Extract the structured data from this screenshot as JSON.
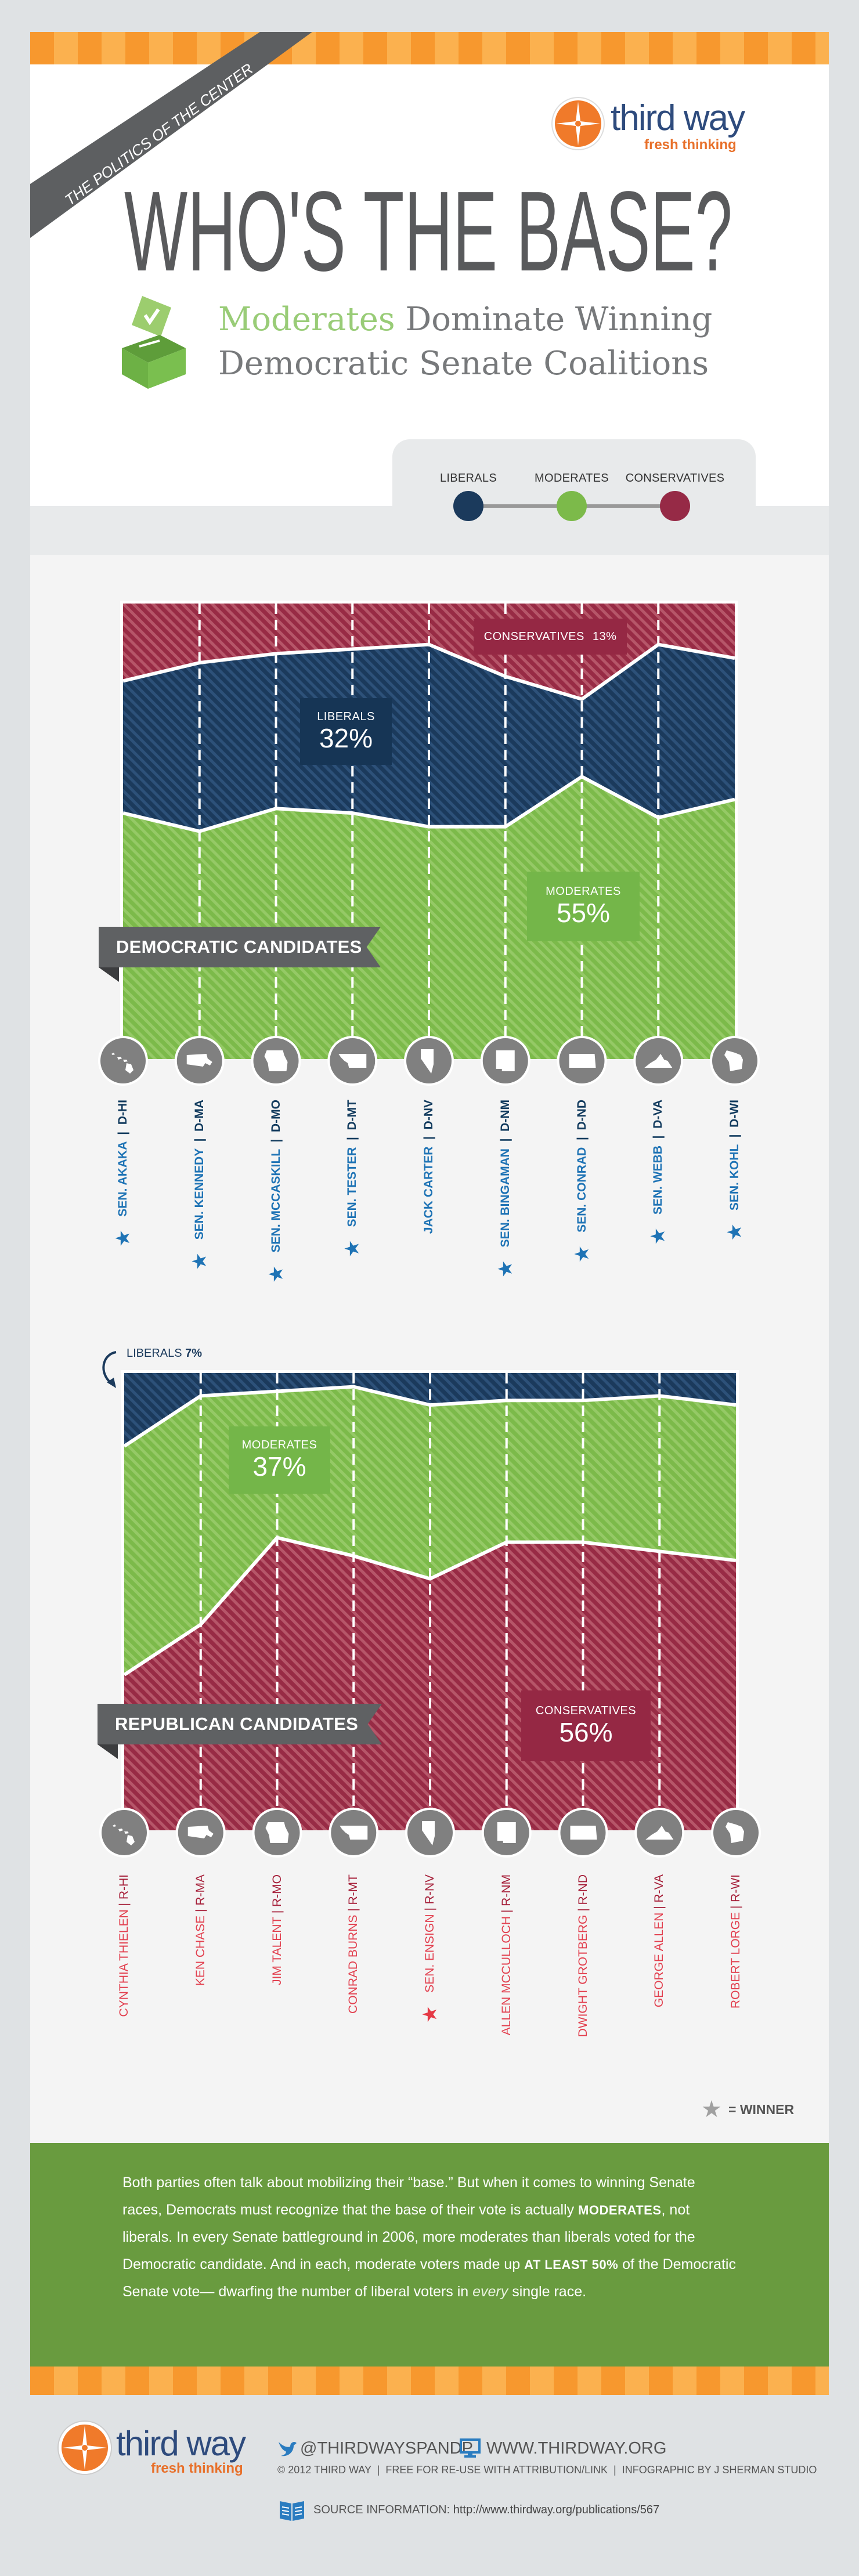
{
  "header": {
    "ribbon": "THE POLITICS OF THE CENTER",
    "title": "WHO'S THE BASE?",
    "subtitle_highlight": "Moderates",
    "subtitle_line1_rest": " Dominate Winning",
    "subtitle_line2": "Democratic Senate Coalitions",
    "logo": {
      "name": "third way",
      "tagline": "fresh thinking"
    }
  },
  "legend": {
    "items": [
      {
        "label": "LIBERALS",
        "color": "#1b3a5c"
      },
      {
        "label": "MODERATES",
        "color": "#7cba4a"
      },
      {
        "label": "CONSERVATIVES",
        "color": "#962a46"
      }
    ]
  },
  "colors": {
    "liberals": "#1b3a5c",
    "liberals_stripe": "#2d5179",
    "moderates": "#7cba4a",
    "moderates_stripe": "#95c966",
    "conservatives": "#982b45",
    "conservatives_stripe": "#b65669",
    "state_circle": "#808080"
  },
  "chart_data": [
    {
      "type": "area",
      "stacked": true,
      "percent": true,
      "ylim": [
        0,
        100
      ],
      "grid": false,
      "banner": "DEMOCRATIC CANDIDATES",
      "candidates": [
        {
          "name": "SEN. AKAKA",
          "party": "D-HI",
          "state": "hawaii",
          "winner": true
        },
        {
          "name": "SEN. KENNEDY",
          "party": "D-MA",
          "state": "massachusetts",
          "winner": true
        },
        {
          "name": "SEN. MCCASKILL",
          "party": "D-MO",
          "state": "missouri",
          "winner": true
        },
        {
          "name": "SEN. TESTER",
          "party": "D-MT",
          "state": "montana",
          "winner": true
        },
        {
          "name": "JACK CARTER",
          "party": "D-NV",
          "state": "nevada",
          "winner": false
        },
        {
          "name": "SEN. BINGAMAN",
          "party": "D-NM",
          "state": "new-mexico",
          "winner": true
        },
        {
          "name": "SEN. CONRAD",
          "party": "D-ND",
          "state": "north-dakota",
          "winner": true
        },
        {
          "name": "SEN. WEBB",
          "party": "D-VA",
          "state": "virginia",
          "winner": true
        },
        {
          "name": "SEN. KOHL",
          "party": "D-WI",
          "state": "wisconsin",
          "winner": true
        }
      ],
      "series": [
        {
          "name": "Conservatives",
          "key": "conservatives",
          "values": [
            17,
            13,
            11,
            10,
            9,
            16,
            21,
            9,
            12
          ]
        },
        {
          "name": "Liberals",
          "key": "liberals",
          "values": [
            29,
            37,
            34,
            36,
            40,
            33,
            17,
            38,
            31
          ]
        },
        {
          "name": "Moderates",
          "key": "moderates",
          "values": [
            54,
            50,
            55,
            54,
            51,
            51,
            62,
            53,
            57
          ]
        }
      ],
      "callouts": {
        "conservatives": {
          "label": "CONSERVATIVES",
          "value": "13%"
        },
        "liberals": {
          "label": "LIBERALS",
          "value": "32%"
        },
        "moderates": {
          "label": "MODERATES",
          "value": "55%"
        }
      }
    },
    {
      "type": "area",
      "stacked": true,
      "percent": true,
      "ylim": [
        0,
        100
      ],
      "grid": false,
      "banner": "REPUBLICAN CANDIDATES",
      "candidates": [
        {
          "name": "CYNTHIA THIELEN",
          "party": "R-HI",
          "state": "hawaii",
          "winner": false
        },
        {
          "name": "KEN CHASE",
          "party": "R-MA",
          "state": "massachusetts",
          "winner": false
        },
        {
          "name": "JIM TALENT",
          "party": "R-MO",
          "state": "missouri",
          "winner": false
        },
        {
          "name": "CONRAD BURNS",
          "party": "R-MT",
          "state": "montana",
          "winner": false
        },
        {
          "name": "SEN. ENSIGN",
          "party": "R-NV",
          "state": "nevada",
          "winner": true
        },
        {
          "name": "ALLEN MCCULLOCH",
          "party": "R-NM",
          "state": "new-mexico",
          "winner": false
        },
        {
          "name": "DWIGHT GROTBERG",
          "party": "R-ND",
          "state": "north-dakota",
          "winner": false
        },
        {
          "name": "GEORGE ALLEN",
          "party": "R-VA",
          "state": "virginia",
          "winner": false
        },
        {
          "name": "ROBERT LORGE",
          "party": "R-WI",
          "state": "wisconsin",
          "winner": false
        }
      ],
      "series": [
        {
          "name": "Liberals",
          "key": "liberals",
          "values": [
            16,
            5,
            4,
            3,
            7,
            6,
            6,
            5,
            7
          ]
        },
        {
          "name": "Moderates",
          "key": "moderates",
          "values": [
            50,
            50,
            32,
            37,
            38,
            31,
            31,
            34,
            34
          ]
        },
        {
          "name": "Conservatives",
          "key": "conservatives",
          "values": [
            34,
            45,
            64,
            60,
            55,
            63,
            63,
            61,
            59
          ]
        }
      ],
      "callouts": {
        "liberals": {
          "label": "LIBERALS",
          "value": "7%"
        },
        "moderates": {
          "label": "MODERATES",
          "value": "37%"
        },
        "conservatives": {
          "label": "CONSERVATIVES",
          "value": "56%"
        }
      }
    }
  ],
  "winner_legend": {
    "text": "= WINNER"
  },
  "paragraph": [
    {
      "t": "Both parties often talk about mobilizing their “base.” But when it comes to winning Senate races, Democrats must recognize that the base of their vote is actually ",
      "s": "n"
    },
    {
      "t": "MODERATES",
      "s": "b"
    },
    {
      "t": ", not liberals. In every Senate battleground in 2006, more moderates than liberals voted for the Democratic candidate. And in each, moderate voters made up ",
      "s": "n"
    },
    {
      "t": "AT LEAST 50%",
      "s": "b"
    },
    {
      "t": " of the Democratic Senate vote— dwarfing the number of liberal voters in ",
      "s": "n"
    },
    {
      "t": "every",
      "s": "l"
    },
    {
      "t": " single race.",
      "s": "n"
    }
  ],
  "footer": {
    "logo": {
      "name": "third way",
      "tagline": "fresh thinking"
    },
    "twitter": "@THIRDWAYSPANDP",
    "website": "WWW.THIRDWAY.ORG",
    "credits": [
      "© 2012 THIRD WAY",
      "FREE FOR RE-USE WITH ATTRIBUTION/LINK",
      "INFOGRAPHIC BY J SHERMAN STUDIO"
    ],
    "source_label": "SOURCE INFORMATION:",
    "source_url": "http://www.thirdway.org/publications/567"
  }
}
